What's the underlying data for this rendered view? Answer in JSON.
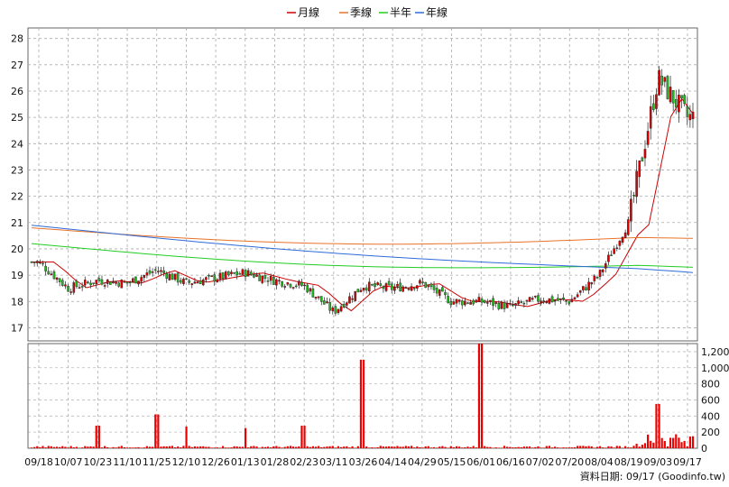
{
  "chart_data": {
    "type": "candlestick",
    "legend": [
      {
        "name": "月線",
        "color": "#cc0000"
      },
      {
        "name": "季線",
        "color": "#e8732a"
      },
      {
        "name": "半年",
        "color": "#22cc22"
      },
      {
        "name": "年線",
        "color": "#2f6bd9"
      }
    ],
    "legend_placement": "top-center",
    "grid": true,
    "colors": {
      "up": "#dd0000",
      "down": "#22bb22",
      "volume": "#ee0000"
    },
    "price_axis": {
      "ticks": [
        "17",
        "18",
        "19",
        "20",
        "21",
        "22",
        "23",
        "24",
        "25",
        "26",
        "27",
        "28"
      ],
      "ylim": [
        16.5,
        28.4
      ]
    },
    "volume_axis": {
      "ticks": [
        "0",
        "200",
        "400",
        "600",
        "800",
        "1,000",
        "1,200"
      ],
      "ylim": [
        0,
        1300
      ]
    },
    "x_ticks": [
      "09/18",
      "10/07",
      "10/23",
      "11/10",
      "11/25",
      "12/10",
      "12/26",
      "01/13",
      "01/28",
      "02/23",
      "03/11",
      "03/26",
      "04/14",
      "04/29",
      "05/15",
      "06/01",
      "06/16",
      "07/02",
      "07/20",
      "08/04",
      "08/19",
      "09/03",
      "09/17"
    ],
    "source_label": "資料日期: 09/17  (Goodinfo.tw)",
    "price_anchors": [
      {
        "tick": "09/18",
        "close": 19.5
      },
      {
        "tick": "10/07",
        "close": 18.5
      },
      {
        "tick": "10/23",
        "close": 18.8
      },
      {
        "tick": "11/10",
        "close": 18.7
      },
      {
        "tick": "11/25",
        "close": 19.2
      },
      {
        "tick": "12/10",
        "close": 18.7
      },
      {
        "tick": "12/26",
        "close": 18.9
      },
      {
        "tick": "01/13",
        "close": 19.1
      },
      {
        "tick": "01/28",
        "close": 18.8
      },
      {
        "tick": "02/23",
        "close": 18.6
      },
      {
        "tick": "03/11",
        "close": 17.6
      },
      {
        "tick": "03/26",
        "close": 18.6
      },
      {
        "tick": "04/14",
        "close": 18.5
      },
      {
        "tick": "04/29",
        "close": 18.7
      },
      {
        "tick": "05/15",
        "close": 18.0
      },
      {
        "tick": "06/01",
        "close": 18.0
      },
      {
        "tick": "06/16",
        "close": 17.8
      },
      {
        "tick": "07/02",
        "close": 18.1
      },
      {
        "tick": "07/20",
        "close": 18.0
      },
      {
        "tick": "08/04",
        "close": 19.0
      },
      {
        "tick": "08/19",
        "close": 21.0
      },
      {
        "tick": "09/03",
        "close": 26.5
      },
      {
        "tick": "09/17",
        "close": 25.0
      }
    ],
    "volume_spikes": [
      {
        "tick": "10/23",
        "volume": 280
      },
      {
        "tick": "11/25",
        "volume": 420
      },
      {
        "tick": "12/10",
        "volume": 270
      },
      {
        "tick": "01/13",
        "volume": 250
      },
      {
        "tick": "02/23",
        "volume": 280
      },
      {
        "tick": "03/26",
        "volume": 1100
      },
      {
        "tick": "06/01",
        "volume": 1300
      },
      {
        "tick": "09/03",
        "volume": 550
      }
    ],
    "moving_averages": [
      {
        "name": "月線",
        "start": 20.8,
        "end": 24.0
      },
      {
        "name": "季線",
        "start": 20.8,
        "end": 20.4
      },
      {
        "name": "半年",
        "start": 20.2,
        "end": 19.3
      },
      {
        "name": "年線",
        "start": 20.9,
        "end": 19.1
      }
    ]
  }
}
